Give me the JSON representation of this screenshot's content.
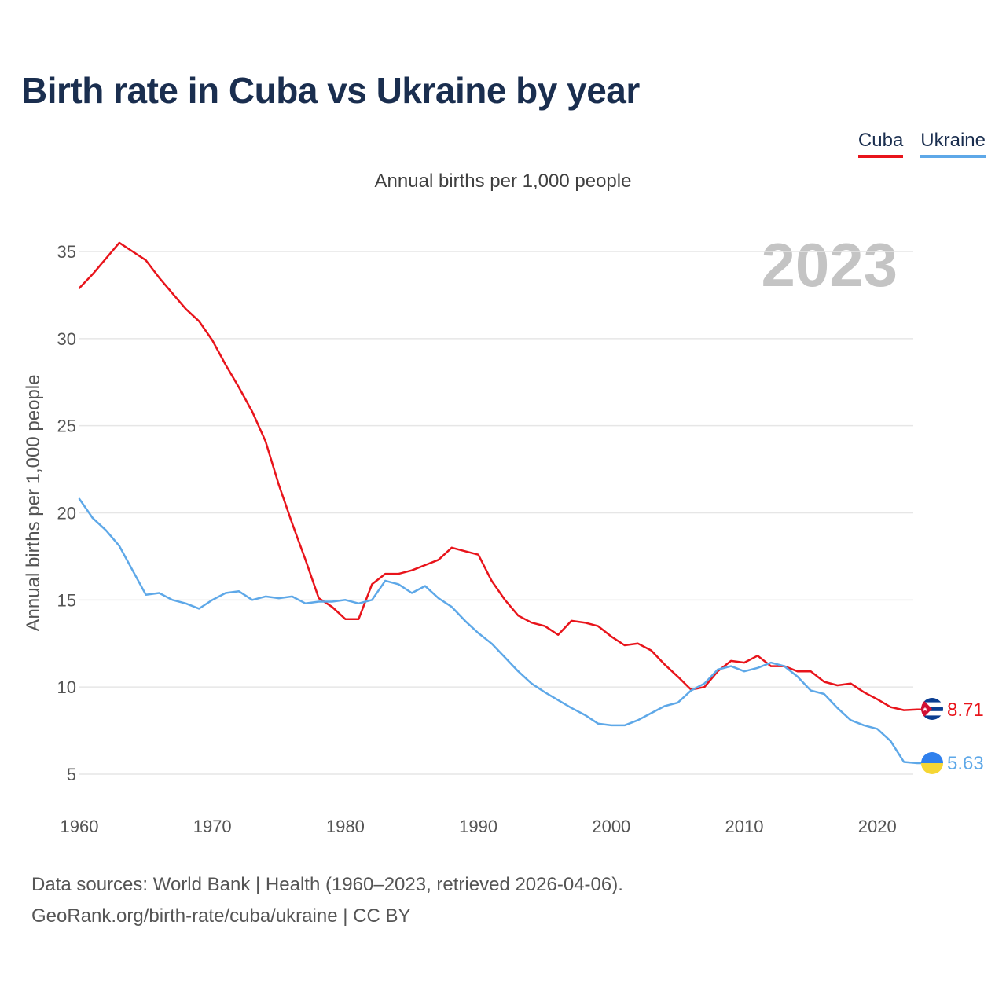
{
  "title": "Birth rate in Cuba vs Ukraine by year",
  "legend": {
    "cuba": "Cuba",
    "ukraine": "Ukraine"
  },
  "subtitle": "Annual births per 1,000 people",
  "year_badge": "2023",
  "colors": {
    "cuba": "#e8141b",
    "ukraine": "#5ea8e8",
    "grid": "#e6e6e6",
    "title": "#1a2e4f"
  },
  "source": {
    "line1": "Data sources: World Bank | Health (1960–2023, retrieved 2026-04-06).",
    "line2": "GeoRank.org/birth-rate/cuba/ukraine | CC BY"
  },
  "chart_data": {
    "type": "line",
    "title": "Birth rate in Cuba vs Ukraine by year",
    "xlabel": "",
    "ylabel": "Annual births per 1,000 people",
    "xlim": [
      1960,
      2023
    ],
    "ylim": [
      3,
      37
    ],
    "yticks": [
      5,
      10,
      15,
      20,
      25,
      30,
      35
    ],
    "xticks": [
      1960,
      1970,
      1980,
      1990,
      2000,
      2010,
      2020
    ],
    "x_start": 1960,
    "series": [
      {
        "name": "Cuba",
        "color": "#e8141b",
        "end_label": "8.71",
        "values": [
          32.9,
          33.7,
          34.6,
          35.5,
          35.0,
          34.5,
          33.5,
          32.6,
          31.7,
          31.0,
          29.9,
          28.5,
          27.2,
          25.8,
          24.1,
          21.6,
          19.4,
          17.3,
          15.1,
          14.6,
          13.9,
          13.9,
          15.9,
          16.5,
          16.5,
          16.7,
          17.0,
          17.3,
          18.0,
          17.8,
          17.6,
          16.1,
          15.0,
          14.1,
          13.7,
          13.5,
          13.0,
          13.8,
          13.7,
          13.5,
          12.9,
          12.4,
          12.5,
          12.1,
          11.3,
          10.6,
          9.85,
          10.0,
          10.9,
          11.5,
          11.4,
          11.8,
          11.2,
          11.2,
          10.9,
          10.9,
          10.3,
          10.1,
          10.2,
          9.7,
          9.3,
          8.85,
          8.67,
          8.71
        ]
      },
      {
        "name": "Ukraine",
        "color": "#5ea8e8",
        "end_label": "5.63",
        "values": [
          20.8,
          19.7,
          19.0,
          18.1,
          16.7,
          15.3,
          15.4,
          15.0,
          14.8,
          14.5,
          15.0,
          15.4,
          15.5,
          15.0,
          15.2,
          15.1,
          15.2,
          14.8,
          14.9,
          14.9,
          15.0,
          14.8,
          15.0,
          16.1,
          15.9,
          15.4,
          15.8,
          15.1,
          14.6,
          13.8,
          13.1,
          12.5,
          11.7,
          10.9,
          10.2,
          9.7,
          9.25,
          8.8,
          8.4,
          7.9,
          7.8,
          7.8,
          8.1,
          8.5,
          8.9,
          9.1,
          9.8,
          10.2,
          11.0,
          11.2,
          10.9,
          11.1,
          11.4,
          11.2,
          10.6,
          9.8,
          9.6,
          8.8,
          8.1,
          7.8,
          7.6,
          6.9,
          5.7,
          5.63
        ]
      }
    ]
  }
}
